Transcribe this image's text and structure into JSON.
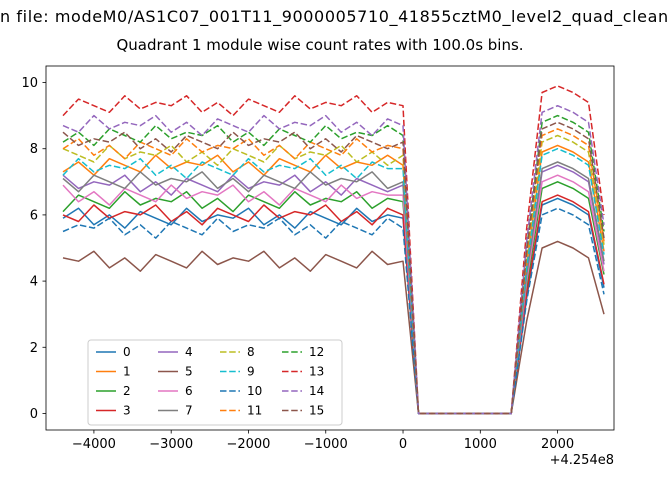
{
  "chart_data": {
    "type": "line",
    "title_line1": "n file: modeM0/AS1C07_001T11_9000005710_41855cztM0_level2_quad_clean",
    "title_line2": "Quadrant 1 module wise count rates with 100.0s bins.",
    "xlabel": "",
    "ylabel": "",
    "xlim": [
      -4620,
      2730
    ],
    "ylim": [
      -0.5,
      10.5
    ],
    "x_tick_values": [
      -4000,
      -3000,
      -2000,
      -1000,
      0,
      1000,
      2000
    ],
    "x_tick_labels": [
      "−4000",
      "−3000",
      "−2000",
      "−1000",
      "0",
      "1000",
      "2000"
    ],
    "y_tick_values": [
      0,
      2,
      4,
      6,
      8,
      10
    ],
    "y_tick_labels": [
      "0",
      "2",
      "4",
      "6",
      "8",
      "10"
    ],
    "x_axis_offset_label": "+4.254e8",
    "x_start": -4400,
    "x_step": 200,
    "legend": {
      "position": "lower left",
      "columns": 4
    },
    "series": [
      {
        "name": "0",
        "color": "#1f77b4",
        "dash": "solid",
        "values": [
          5.9,
          6.2,
          5.7,
          6.0,
          5.6,
          6.1,
          5.9,
          5.7,
          6.2,
          5.8,
          6.0,
          5.9,
          6.2,
          5.7,
          6.0,
          5.6,
          6.1,
          5.9,
          5.7,
          6.2,
          5.8,
          6.0,
          5.9,
          0,
          0,
          0,
          0,
          0,
          0,
          0,
          3.5,
          6.3,
          6.5,
          6.3,
          6.0,
          3.8
        ]
      },
      {
        "name": "1",
        "color": "#ff7f0e",
        "dash": "solid",
        "values": [
          7.3,
          7.6,
          7.2,
          7.7,
          7.5,
          7.3,
          7.8,
          7.4,
          7.6,
          7.5,
          7.8,
          7.3,
          7.6,
          7.2,
          7.7,
          7.5,
          7.3,
          7.8,
          7.4,
          7.6,
          7.5,
          7.8,
          7.5,
          0,
          0,
          0,
          0,
          0,
          0,
          0,
          4.5,
          7.9,
          8.1,
          7.9,
          7.6,
          4.9
        ]
      },
      {
        "name": "2",
        "color": "#2ca02c",
        "dash": "solid",
        "values": [
          6.1,
          6.6,
          6.4,
          6.2,
          6.7,
          6.3,
          6.5,
          6.4,
          6.7,
          6.2,
          6.5,
          6.1,
          6.6,
          6.4,
          6.2,
          6.7,
          6.3,
          6.5,
          6.4,
          6.7,
          6.2,
          6.5,
          6.4,
          0,
          0,
          0,
          0,
          0,
          0,
          0,
          3.8,
          6.8,
          7.0,
          6.8,
          6.5,
          4.2
        ]
      },
      {
        "name": "3",
        "color": "#d62728",
        "dash": "solid",
        "values": [
          6.0,
          5.8,
          6.3,
          5.9,
          6.1,
          6.0,
          6.3,
          5.8,
          6.1,
          5.7,
          6.2,
          6.0,
          5.8,
          6.3,
          5.9,
          6.1,
          6.0,
          6.3,
          5.8,
          6.1,
          5.7,
          6.2,
          6.0,
          0,
          0,
          0,
          0,
          0,
          0,
          0,
          3.6,
          6.4,
          6.6,
          6.4,
          6.1,
          3.9
        ]
      },
      {
        "name": "4",
        "color": "#9467bd",
        "dash": "solid",
        "values": [
          7.2,
          6.8,
          7.0,
          6.9,
          7.2,
          6.7,
          7.0,
          6.6,
          7.1,
          6.9,
          6.7,
          7.2,
          6.8,
          7.0,
          6.9,
          7.2,
          6.7,
          7.0,
          6.6,
          7.1,
          6.9,
          6.7,
          6.9,
          0,
          0,
          0,
          0,
          0,
          0,
          0,
          4.1,
          7.3,
          7.5,
          7.3,
          7.0,
          4.5
        ]
      },
      {
        "name": "5",
        "color": "#8c564b",
        "dash": "solid",
        "values": [
          4.7,
          4.6,
          4.9,
          4.4,
          4.7,
          4.3,
          4.8,
          4.6,
          4.4,
          4.9,
          4.5,
          4.7,
          4.6,
          4.9,
          4.4,
          4.7,
          4.3,
          4.8,
          4.6,
          4.4,
          4.9,
          4.5,
          4.6,
          0,
          0,
          0,
          0,
          0,
          0,
          0,
          2.8,
          5.0,
          5.2,
          5.0,
          4.7,
          3.0
        ]
      },
      {
        "name": "6",
        "color": "#e377c2",
        "dash": "solid",
        "values": [
          6.9,
          6.4,
          6.7,
          6.3,
          6.8,
          6.6,
          6.4,
          6.9,
          6.5,
          6.7,
          6.6,
          6.9,
          6.4,
          6.7,
          6.3,
          6.8,
          6.6,
          6.4,
          6.9,
          6.5,
          6.7,
          6.6,
          6.6,
          0,
          0,
          0,
          0,
          0,
          0,
          0,
          4.0,
          7.0,
          7.2,
          7.0,
          6.7,
          4.3
        ]
      },
      {
        "name": "7",
        "color": "#7f7f7f",
        "dash": "solid",
        "values": [
          7.1,
          6.7,
          7.2,
          7.0,
          6.8,
          7.3,
          6.9,
          7.1,
          7.0,
          7.3,
          6.8,
          7.1,
          6.7,
          7.2,
          7.0,
          6.8,
          7.3,
          6.9,
          7.1,
          7.0,
          7.3,
          6.8,
          7.0,
          0,
          0,
          0,
          0,
          0,
          0,
          0,
          4.2,
          7.4,
          7.6,
          7.4,
          7.1,
          4.6
        ]
      },
      {
        "name": "8",
        "color": "#bcbd22",
        "dash": "dashed",
        "values": [
          8.0,
          7.8,
          7.6,
          8.1,
          7.7,
          7.9,
          7.8,
          8.1,
          7.6,
          7.9,
          7.5,
          8.0,
          7.8,
          7.6,
          8.1,
          7.7,
          7.9,
          7.8,
          8.1,
          7.6,
          7.9,
          7.5,
          7.8,
          0,
          0,
          0,
          0,
          0,
          0,
          0,
          4.7,
          8.2,
          8.4,
          8.2,
          7.9,
          5.1
        ]
      },
      {
        "name": "9",
        "color": "#17becf",
        "dash": "dashed",
        "values": [
          7.2,
          7.7,
          7.3,
          7.5,
          7.4,
          7.7,
          7.2,
          7.5,
          7.1,
          7.6,
          7.4,
          7.2,
          7.7,
          7.3,
          7.5,
          7.4,
          7.7,
          7.2,
          7.5,
          7.1,
          7.6,
          7.4,
          7.4,
          0,
          0,
          0,
          0,
          0,
          0,
          0,
          4.4,
          7.8,
          8.0,
          7.8,
          7.5,
          4.8
        ]
      },
      {
        "name": "10",
        "color": "#1f77b4",
        "dash": "dashed",
        "values": [
          5.5,
          5.7,
          5.6,
          5.9,
          5.4,
          5.7,
          5.3,
          5.8,
          5.6,
          5.4,
          5.9,
          5.5,
          5.7,
          5.6,
          5.9,
          5.4,
          5.7,
          5.3,
          5.8,
          5.6,
          5.4,
          5.9,
          5.6,
          0,
          0,
          0,
          0,
          0,
          0,
          0,
          3.4,
          6.0,
          6.2,
          6.0,
          5.7,
          3.6
        ]
      },
      {
        "name": "11",
        "color": "#ff7f0e",
        "dash": "dashed",
        "values": [
          8.0,
          8.3,
          7.8,
          8.1,
          7.7,
          8.2,
          8.0,
          7.8,
          8.3,
          7.9,
          8.1,
          8.0,
          8.3,
          7.8,
          8.1,
          7.7,
          8.2,
          8.0,
          7.8,
          8.3,
          7.9,
          8.1,
          8.0,
          0,
          0,
          0,
          0,
          0,
          0,
          0,
          4.8,
          8.4,
          8.6,
          8.4,
          8.1,
          5.2
        ]
      },
      {
        "name": "12",
        "color": "#2ca02c",
        "dash": "dashed",
        "values": [
          8.2,
          8.5,
          8.1,
          8.6,
          8.4,
          8.2,
          8.7,
          8.3,
          8.5,
          8.4,
          8.7,
          8.2,
          8.5,
          8.1,
          8.6,
          8.4,
          8.2,
          8.7,
          8.3,
          8.5,
          8.4,
          8.7,
          8.4,
          0,
          0,
          0,
          0,
          0,
          0,
          0,
          5.0,
          8.8,
          9.0,
          8.8,
          8.5,
          5.5
        ]
      },
      {
        "name": "13",
        "color": "#d62728",
        "dash": "dashed",
        "values": [
          9.0,
          9.5,
          9.3,
          9.1,
          9.6,
          9.2,
          9.4,
          9.3,
          9.6,
          9.1,
          9.4,
          9.0,
          9.5,
          9.3,
          9.1,
          9.6,
          9.2,
          9.4,
          9.3,
          9.6,
          9.1,
          9.4,
          9.3,
          0,
          0,
          0,
          0,
          0,
          0,
          0,
          5.6,
          9.7,
          9.9,
          9.7,
          9.4,
          6.0
        ]
      },
      {
        "name": "14",
        "color": "#9467bd",
        "dash": "dashed",
        "values": [
          8.7,
          8.5,
          9.0,
          8.6,
          8.8,
          8.7,
          9.0,
          8.5,
          8.8,
          8.4,
          8.9,
          8.7,
          8.5,
          9.0,
          8.6,
          8.8,
          8.7,
          9.0,
          8.5,
          8.8,
          8.4,
          8.9,
          8.7,
          0,
          0,
          0,
          0,
          0,
          0,
          0,
          5.2,
          9.1,
          9.3,
          9.1,
          8.8,
          5.7
        ]
      },
      {
        "name": "15",
        "color": "#8c564b",
        "dash": "dashed",
        "values": [
          8.5,
          8.1,
          8.3,
          8.2,
          8.5,
          8.0,
          8.3,
          7.9,
          8.4,
          8.2,
          8.0,
          8.5,
          8.1,
          8.3,
          8.2,
          8.5,
          8.0,
          8.3,
          7.9,
          8.4,
          8.2,
          8.0,
          8.2,
          0,
          0,
          0,
          0,
          0,
          0,
          0,
          4.9,
          8.6,
          8.8,
          8.6,
          8.3,
          5.3
        ]
      }
    ]
  }
}
